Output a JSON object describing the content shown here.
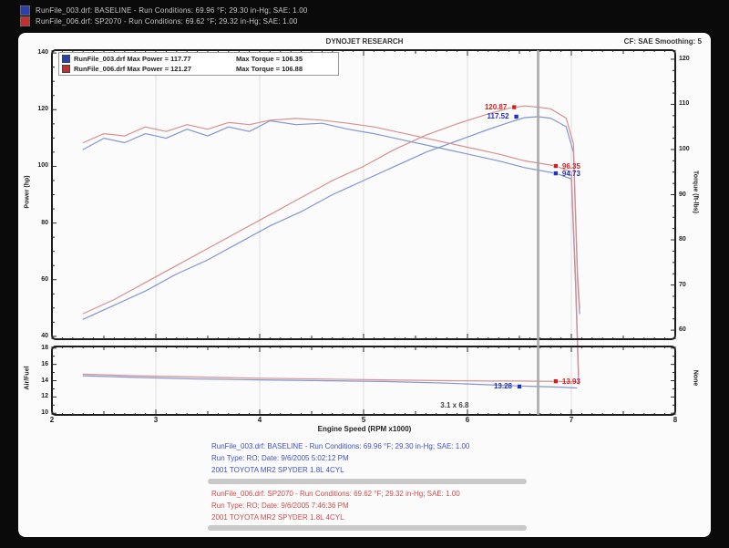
{
  "header": {
    "title": "DYNOJET RESEARCH",
    "correction": "CF: SAE   Smoothing: 5"
  },
  "top_legend": [
    {
      "color": "#2b3fae",
      "text": "RunFile_003.drf: BASELINE  -  Run Conditions: 69.96 °F; 29.30 in-Hg; SAE: 1.00"
    },
    {
      "color": "#c22f2f",
      "text": "RunFile_006.drf: SP2070  -  Run Conditions: 69.62 °F; 29.32 in-Hg; SAE: 1.00"
    }
  ],
  "chart_data": [
    {
      "type": "line",
      "title": "DYNOJET RESEARCH",
      "xlabel": "Engine Speed (RPM x1000)",
      "xlim": [
        2,
        8
      ],
      "x_ticks": [
        2,
        3,
        4,
        5,
        6,
        7,
        8
      ],
      "grid": "vertical",
      "cursor_x": 6.68,
      "left_axis": {
        "label": "Power (hp)",
        "ticks": [
          140,
          120,
          100,
          80,
          60,
          40
        ],
        "lim": [
          39,
          141
        ],
        "minor": 5
      },
      "right_axis": {
        "label": "Torque (ft-lbs)",
        "ticks": [
          120,
          110,
          100,
          90,
          80,
          70,
          60
        ],
        "lim": [
          58,
          122
        ],
        "minor": 2.5
      },
      "legend": [
        {
          "color": "#2b3fae",
          "label": "RunFile_003.drf Max Power = 117.77",
          "torque": "Max Torque = 106.35"
        },
        {
          "color": "#c22f2f",
          "label": "RunFile_006.drf Max Power = 121.27",
          "torque": "Max Torque = 106.88"
        }
      ],
      "series": [
        {
          "name": "baseline-power",
          "axis": "left",
          "color": "#8296d2",
          "points": [
            [
              2.3,
              46
            ],
            [
              2.6,
              51
            ],
            [
              2.9,
              56
            ],
            [
              3.2,
              62
            ],
            [
              3.5,
              67
            ],
            [
              3.8,
              73
            ],
            [
              4.1,
              79
            ],
            [
              4.4,
              84
            ],
            [
              4.7,
              90
            ],
            [
              5.0,
              95
            ],
            [
              5.3,
              100
            ],
            [
              5.6,
              105
            ],
            [
              5.9,
              109
            ],
            [
              6.2,
              113
            ],
            [
              6.4,
              115.5
            ],
            [
              6.55,
              117.2
            ],
            [
              6.68,
              117.5
            ],
            [
              6.8,
              117.0
            ],
            [
              6.95,
              114
            ],
            [
              7.02,
              105
            ],
            [
              7.06,
              60
            ],
            [
              7.08,
              48
            ]
          ]
        },
        {
          "name": "sp2070-power",
          "axis": "left",
          "color": "#d89090",
          "points": [
            [
              2.3,
              48
            ],
            [
              2.6,
              53
            ],
            [
              2.9,
              59
            ],
            [
              3.2,
              65
            ],
            [
              3.5,
              71
            ],
            [
              3.8,
              77
            ],
            [
              4.1,
              83
            ],
            [
              4.4,
              89
            ],
            [
              4.7,
              95
            ],
            [
              5.0,
              100
            ],
            [
              5.3,
              106
            ],
            [
              5.6,
              111
            ],
            [
              5.9,
              115
            ],
            [
              6.2,
              118.5
            ],
            [
              6.4,
              120.5
            ],
            [
              6.55,
              121.3
            ],
            [
              6.68,
              120.9
            ],
            [
              6.8,
              120.3
            ],
            [
              6.95,
              117
            ],
            [
              7.02,
              108
            ],
            [
              7.06,
              62
            ],
            [
              7.08,
              50
            ]
          ]
        },
        {
          "name": "baseline-torque",
          "axis": "right",
          "color": "#8296d2",
          "points": [
            [
              2.3,
              100
            ],
            [
              2.5,
              102.5
            ],
            [
              2.7,
              101.5
            ],
            [
              2.9,
              103.5
            ],
            [
              3.1,
              102.5
            ],
            [
              3.3,
              104.5
            ],
            [
              3.5,
              103
            ],
            [
              3.7,
              105
            ],
            [
              3.9,
              104
            ],
            [
              4.1,
              106.35
            ],
            [
              4.35,
              105.5
            ],
            [
              4.6,
              105.8
            ],
            [
              4.85,
              104.5
            ],
            [
              5.1,
              103.5
            ],
            [
              5.4,
              102
            ],
            [
              5.7,
              100.5
            ],
            [
              6.0,
              99
            ],
            [
              6.3,
              97.5
            ],
            [
              6.55,
              96
            ],
            [
              6.85,
              94.73
            ],
            [
              7.0,
              93.5
            ],
            [
              7.04,
              70
            ],
            [
              7.07,
              48
            ]
          ]
        },
        {
          "name": "sp2070-torque",
          "axis": "right",
          "color": "#d89090",
          "points": [
            [
              2.3,
              101.5
            ],
            [
              2.5,
              103.5
            ],
            [
              2.7,
              103
            ],
            [
              2.9,
              105
            ],
            [
              3.1,
              104
            ],
            [
              3.3,
              105.5
            ],
            [
              3.5,
              104.5
            ],
            [
              3.7,
              106
            ],
            [
              3.9,
              105.5
            ],
            [
              4.1,
              106.5
            ],
            [
              4.35,
              106.88
            ],
            [
              4.6,
              106.5
            ],
            [
              4.85,
              105.8
            ],
            [
              5.1,
              105
            ],
            [
              5.4,
              103.5
            ],
            [
              5.7,
              102
            ],
            [
              6.0,
              100.5
            ],
            [
              6.3,
              99
            ],
            [
              6.55,
              97.5
            ],
            [
              6.85,
              96.35
            ],
            [
              7.0,
              95
            ],
            [
              7.04,
              72
            ],
            [
              7.07,
              50
            ]
          ]
        }
      ],
      "annotations": [
        {
          "text": "120.87",
          "color": "#cc2222",
          "x": 6.45,
          "value": 120.87,
          "axis": "left",
          "side": "left"
        },
        {
          "text": "117.52",
          "color": "#2233bb",
          "x": 6.47,
          "value": 117.52,
          "axis": "left",
          "side": "left"
        },
        {
          "text": "96.35",
          "color": "#cc2222",
          "x": 6.85,
          "value": 96.35,
          "axis": "right",
          "side": "right"
        },
        {
          "text": "94.73",
          "color": "#2233bb",
          "x": 6.85,
          "value": 94.73,
          "axis": "right",
          "side": "right"
        }
      ]
    },
    {
      "type": "line",
      "title": "Air/Fuel panel",
      "xlabel": "Engine Speed (RPM x1000)",
      "xlim": [
        2,
        8
      ],
      "x_ticks": [
        2,
        3,
        4,
        5,
        6,
        7,
        8
      ],
      "grid": "vertical",
      "cursor_x": 6.68,
      "left_axis": {
        "label": "Air/Fuel",
        "ticks": [
          18,
          16,
          14,
          12,
          10
        ],
        "lim": [
          9.8,
          18.2
        ],
        "minor": 1
      },
      "right_axis": {
        "label": "None",
        "ticks": [],
        "lim": [
          0,
          1
        ],
        "minor": 0
      },
      "legend": [],
      "series": [
        {
          "name": "baseline-afr",
          "axis": "left",
          "color": "#8296d2",
          "points": [
            [
              2.3,
              14.6
            ],
            [
              2.8,
              14.4
            ],
            [
              3.4,
              14.2
            ],
            [
              4.0,
              14.1
            ],
            [
              4.6,
              14.0
            ],
            [
              5.2,
              13.9
            ],
            [
              5.8,
              13.7
            ],
            [
              6.2,
              13.5
            ],
            [
              6.5,
              13.35
            ],
            [
              6.68,
              13.28
            ],
            [
              6.9,
              13.2
            ],
            [
              7.05,
              13.1
            ]
          ]
        },
        {
          "name": "sp2070-afr",
          "axis": "left",
          "color": "#d89090",
          "points": [
            [
              2.3,
              14.8
            ],
            [
              2.8,
              14.6
            ],
            [
              3.4,
              14.45
            ],
            [
              4.0,
              14.3
            ],
            [
              4.6,
              14.2
            ],
            [
              5.2,
              14.1
            ],
            [
              5.8,
              14.0
            ],
            [
              6.2,
              13.95
            ],
            [
              6.5,
              13.95
            ],
            [
              6.68,
              13.93
            ],
            [
              6.9,
              13.9
            ],
            [
              7.05,
              13.85
            ]
          ]
        }
      ],
      "annotations": [
        {
          "text": "13.28",
          "color": "#2233bb",
          "x": 6.5,
          "value": 13.28,
          "axis": "left",
          "side": "left"
        },
        {
          "text": "13.93",
          "color": "#cc2222",
          "x": 6.85,
          "value": 13.93,
          "axis": "left",
          "side": "right"
        },
        {
          "text": "3.1 x 6.8",
          "color": "#444444",
          "x": 5.95,
          "value": 11.0,
          "axis": "left",
          "side": "plain",
          "marker": false
        }
      ]
    }
  ],
  "footer_blocks": [
    {
      "color": "#4150c8",
      "lines": [
        "RunFile_003.drf: BASELINE  -  Run Conditions: 69.96 °F; 29.30 in-Hg; SAE: 1.00",
        "Run Type: RO; Date: 9/6/2005 5:02:12 PM",
        "2001 TOYOTA MR2 SPYDER 1.8L 4CYL"
      ]
    },
    {
      "color": "#cf4a4a",
      "lines": [
        "RunFile_006.drf: SP2070  -  Run Conditions: 69.62 °F; 29.32 in-Hg; SAE: 1.00",
        "Run Type: RO; Date: 9/6/2005 7:46:36 PM",
        "2001 TOYOTA MR2 SPYDER 1.8L 4CYL"
      ]
    }
  ]
}
